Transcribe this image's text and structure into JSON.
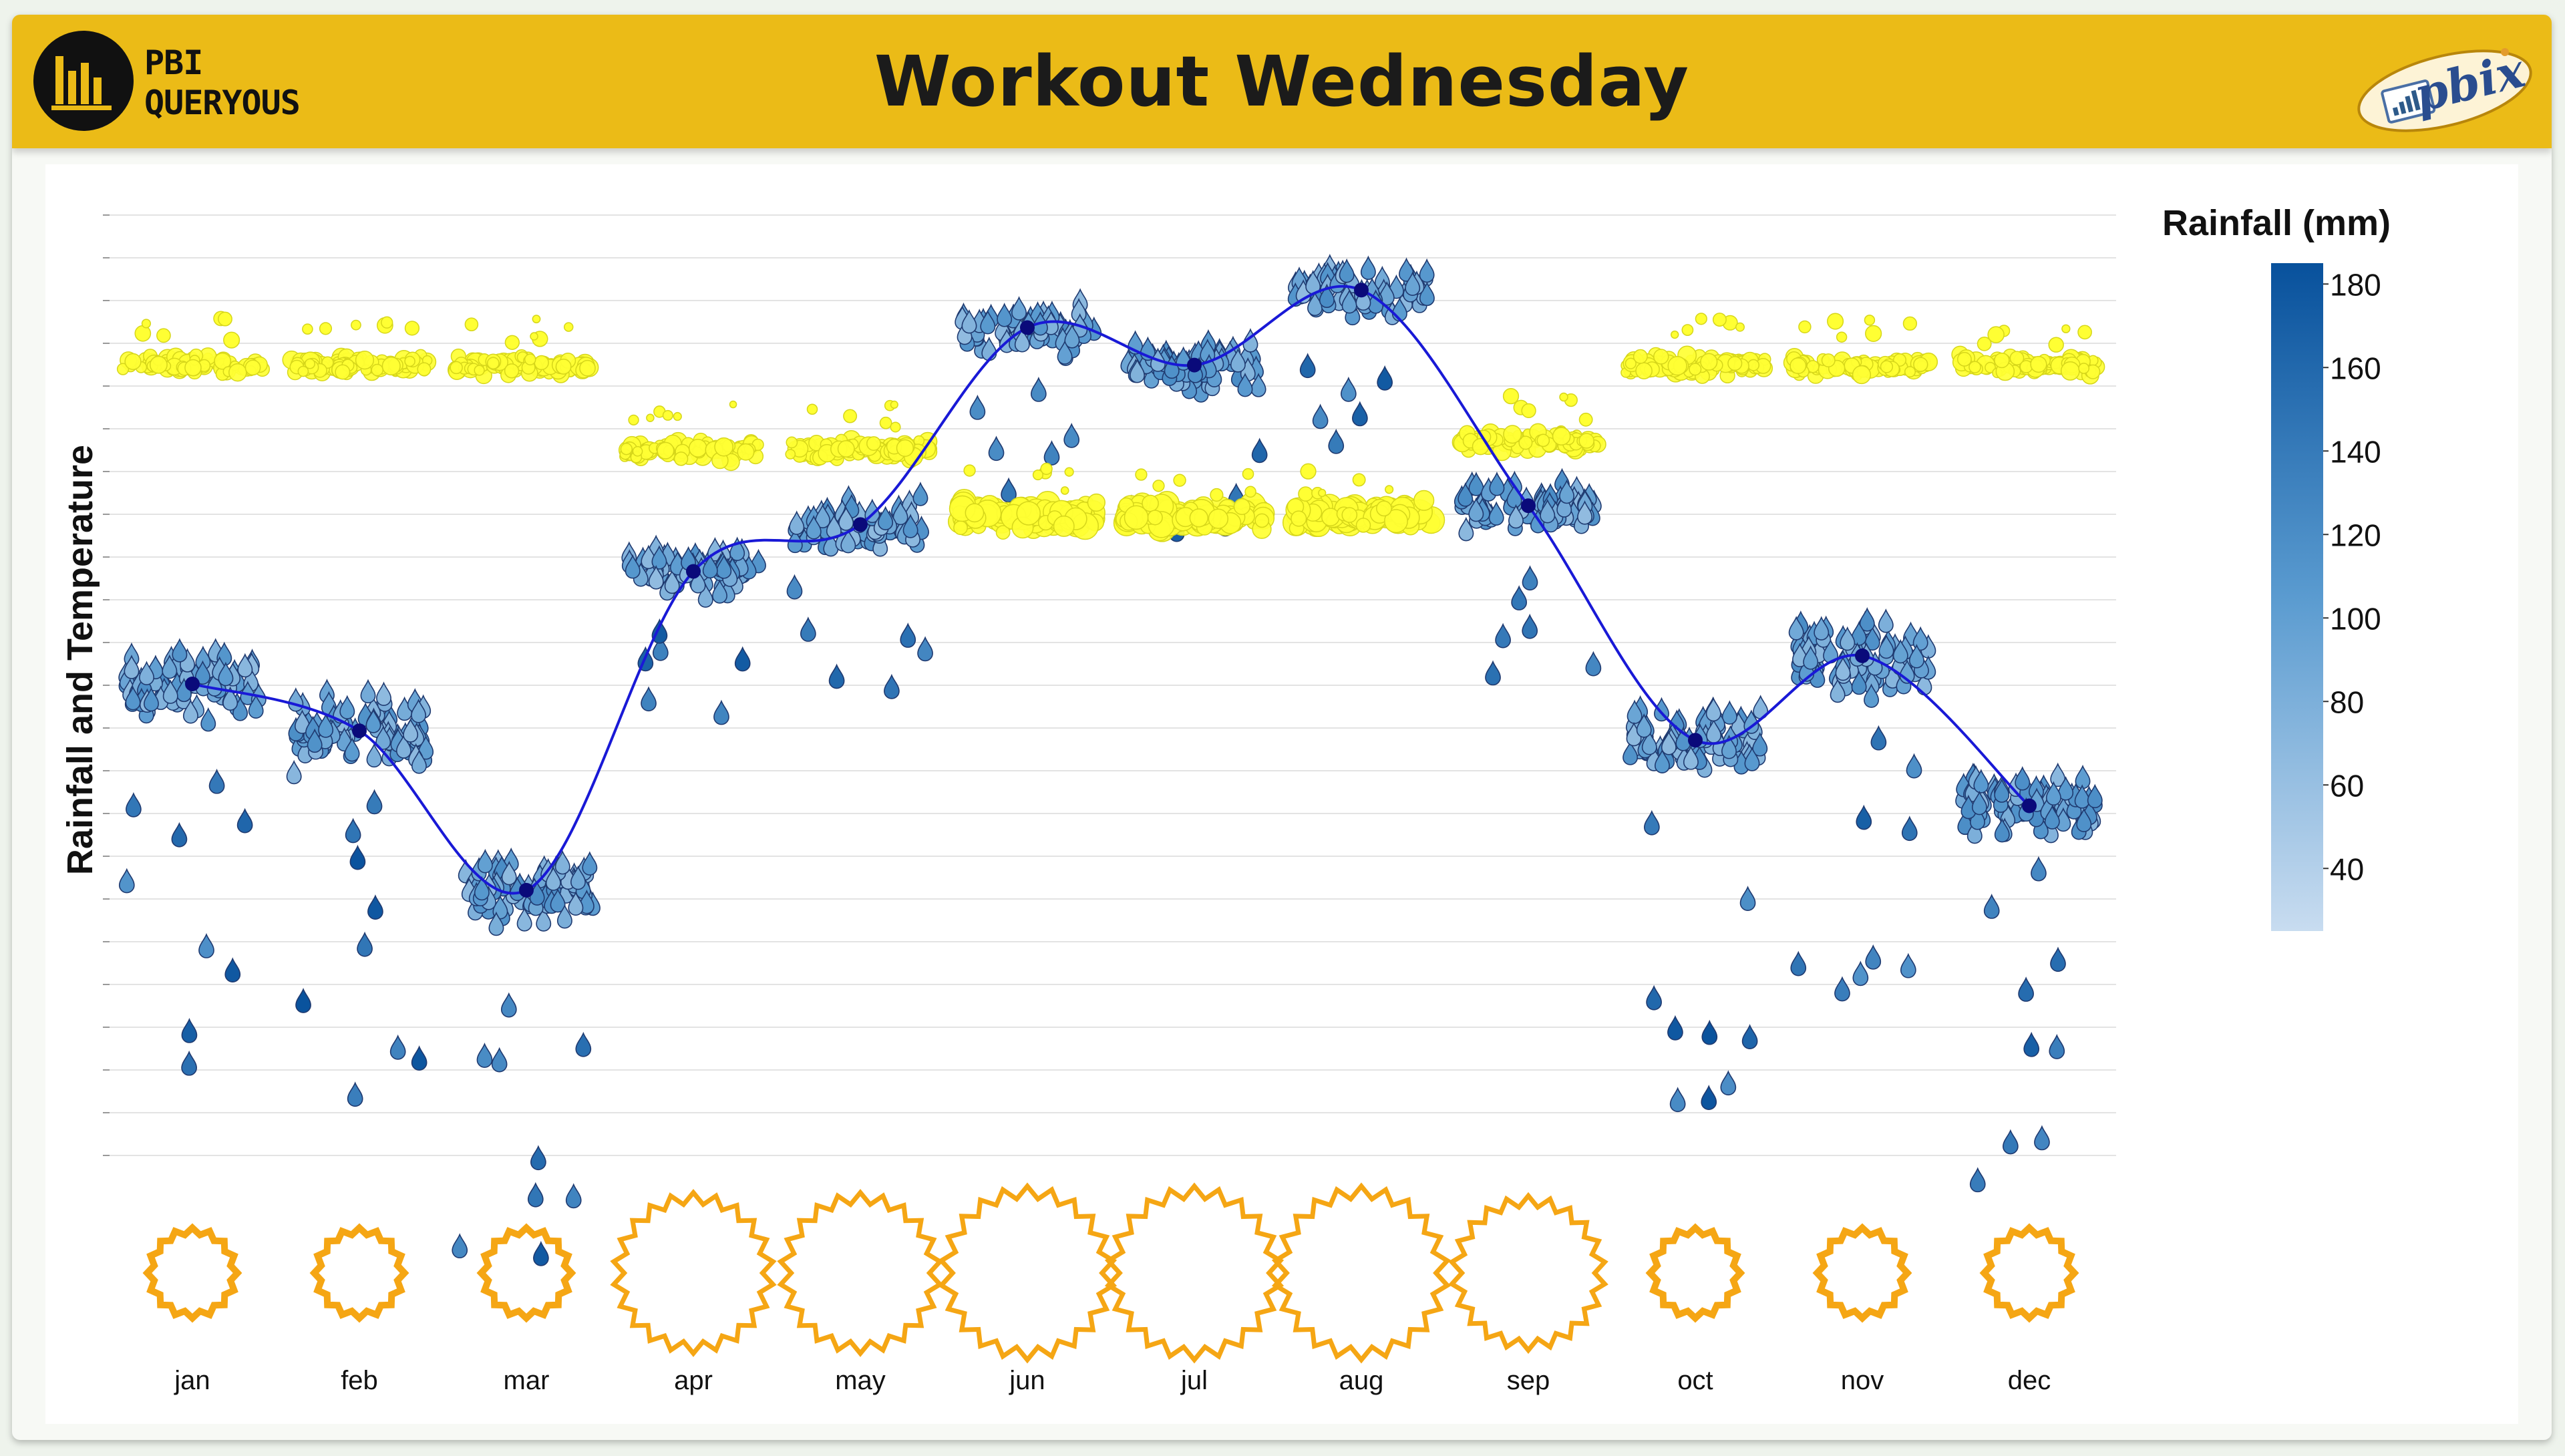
{
  "header": {
    "title": "Workout Wednesday",
    "logo_line1": "PBI",
    "logo_line2": "QUERYOUS",
    "badge_text": "pbix"
  },
  "colors": {
    "banner": "#ebbb17",
    "sun_ring": "#f5a614",
    "temp_line": "#1919d6",
    "temp_point": "#0a0a7a",
    "sunshine_bubble": "#ffff33",
    "rain_light": "#c8dcf0",
    "rain_dark": "#08519c"
  },
  "chart_data": {
    "type": "scatter",
    "ylabel": "Rainfall and Temperature",
    "categories": [
      "jan",
      "feb",
      "mar",
      "apr",
      "may",
      "jun",
      "jul",
      "aug",
      "sep",
      "oct",
      "nov",
      "dec"
    ],
    "temperature_line_relative": [
      0.5,
      0.45,
      0.28,
      0.62,
      0.67,
      0.88,
      0.84,
      0.92,
      0.69,
      0.44,
      0.53,
      0.37
    ],
    "sunshine_level_relative": [
      0.84,
      0.84,
      0.84,
      0.75,
      0.75,
      0.68,
      0.68,
      0.68,
      0.76,
      0.84,
      0.84,
      0.84
    ],
    "sun_size_relative": [
      0.35,
      0.35,
      0.35,
      0.9,
      0.9,
      1.0,
      1.0,
      1.0,
      0.85,
      0.35,
      0.35,
      0.35
    ],
    "legend": {
      "title": "Rainfall (mm)",
      "ticks": [
        180,
        160,
        140,
        120,
        100,
        80,
        60,
        40
      ],
      "min": 25,
      "max": 185,
      "placement": "top-right"
    },
    "grid": true
  }
}
